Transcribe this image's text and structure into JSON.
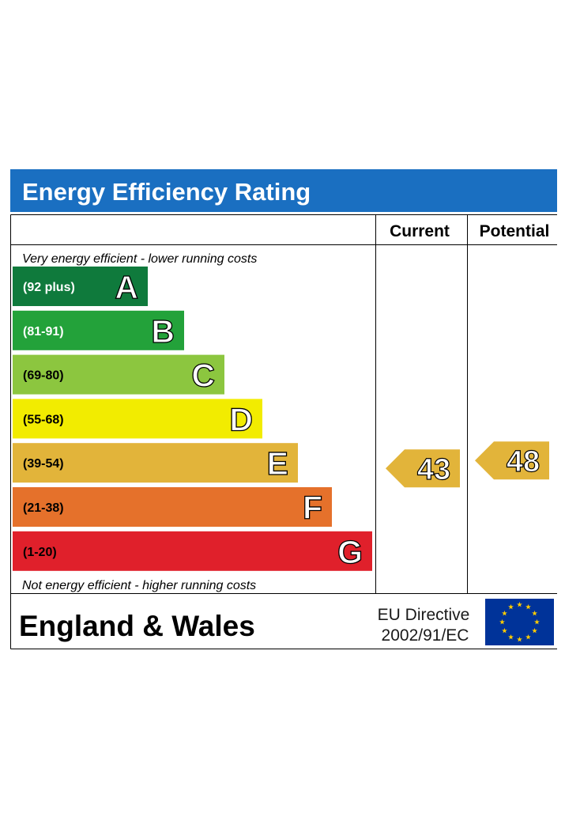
{
  "title": "Energy Efficiency Rating",
  "columns": {
    "current": "Current",
    "potential": "Potential"
  },
  "top_note": "Very energy efficient - lower running costs",
  "bottom_note": "Not energy efficient - higher running costs",
  "footer": {
    "region": "England & Wales",
    "directive_line1": "EU Directive",
    "directive_line2": "2002/91/EC",
    "flag_icon": "eu-flag-icon"
  },
  "colors": {
    "header": "#1a6fc1",
    "A": "#0f7a3c",
    "B": "#23a23a",
    "C": "#8cc63f",
    "D": "#f2ec00",
    "E": "#e2b43a",
    "F": "#e5712b",
    "G": "#e0202b",
    "eu_blue": "#003399",
    "eu_star": "#ffcc00"
  },
  "chart_data": {
    "type": "bar",
    "categories": [
      "A",
      "B",
      "C",
      "D",
      "E",
      "F",
      "G"
    ],
    "series": [
      {
        "ranges": [
          "(92 plus)",
          "(81-91)",
          "(69-80)",
          "(55-68)",
          "(39-54)",
          "(21-38)",
          "(1-20)"
        ],
        "values": [
          92,
          81,
          69,
          55,
          39,
          21,
          1
        ]
      }
    ],
    "current": {
      "value": 43,
      "band": "E"
    },
    "potential": {
      "value": 48,
      "band": "E"
    }
  }
}
